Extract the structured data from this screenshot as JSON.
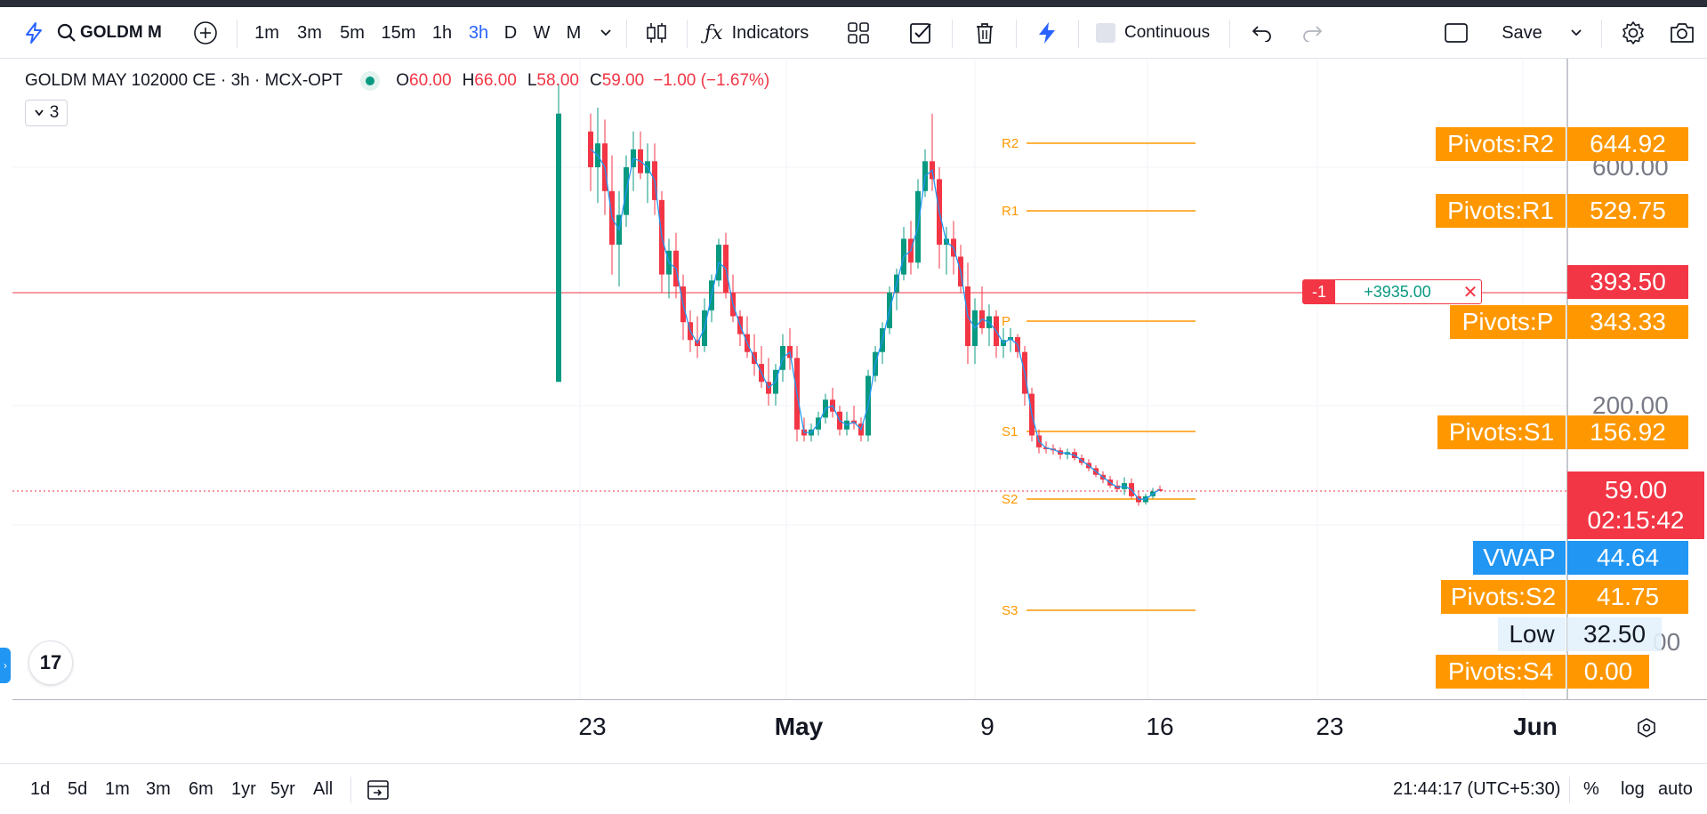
{
  "toolbar": {
    "symbol": "GOLDM MA",
    "intervals": [
      "1m",
      "3m",
      "5m",
      "15m",
      "1h",
      "3h",
      "D",
      "W",
      "M"
    ],
    "active_interval": "3h",
    "indicators_label": "Indicators",
    "continuous_label": "Continuous",
    "save_label": "Save"
  },
  "legend": {
    "title": "GOLDM MAY 102000 CE · 3h · MCX-OPT",
    "o_label": "O",
    "o_value": "60.00",
    "h_label": "H",
    "h_value": "66.00",
    "l_label": "L",
    "l_value": "58.00",
    "c_label": "C",
    "c_value": "59.00",
    "change": "−1.00 (−1.67%)",
    "collapse_count": "3"
  },
  "pivots": {
    "R2": {
      "label": "R2",
      "tag": "Pivots:R2",
      "value": "644.92"
    },
    "R1": {
      "label": "R1",
      "tag": "Pivots:R1",
      "value": "529.75"
    },
    "P": {
      "label": "P",
      "tag": "Pivots:P",
      "value": "343.33"
    },
    "S1": {
      "label": "S1",
      "tag": "Pivots:S1",
      "value": "156.92"
    },
    "S2": {
      "label": "S2",
      "tag": "Pivots:S2",
      "value": "41.75"
    },
    "S3": {
      "label": "S3"
    },
    "S4": {
      "tag": "Pivots:S4",
      "value": "0.00"
    }
  },
  "position": {
    "qty": "-1",
    "pnl": "+3935.00",
    "price": "393.50"
  },
  "last_price": {
    "value": "59.00",
    "countdown": "02:15:42"
  },
  "vwap": {
    "tag": "VWAP",
    "value": "44.64"
  },
  "low": {
    "tag": "Low",
    "value": "32.50"
  },
  "price_axis": {
    "ticks": [
      "600.00",
      "200.00",
      "00"
    ]
  },
  "time_axis": {
    "ticks": [
      "23",
      "May",
      "9",
      "16",
      "23",
      "Jun"
    ]
  },
  "bottombar": {
    "ranges": [
      "1d",
      "5d",
      "1m",
      "3m",
      "6m",
      "1yr",
      "5yr",
      "All"
    ],
    "clock": "21:44:17 (UTC+5:30)",
    "percent_label": "%",
    "log_label": "log",
    "auto_label": "auto"
  },
  "colors": {
    "up": "#089981",
    "down": "#f23645",
    "pivot": "#ff9800",
    "vwap": "#2196f3",
    "accent": "#2962ff"
  }
}
